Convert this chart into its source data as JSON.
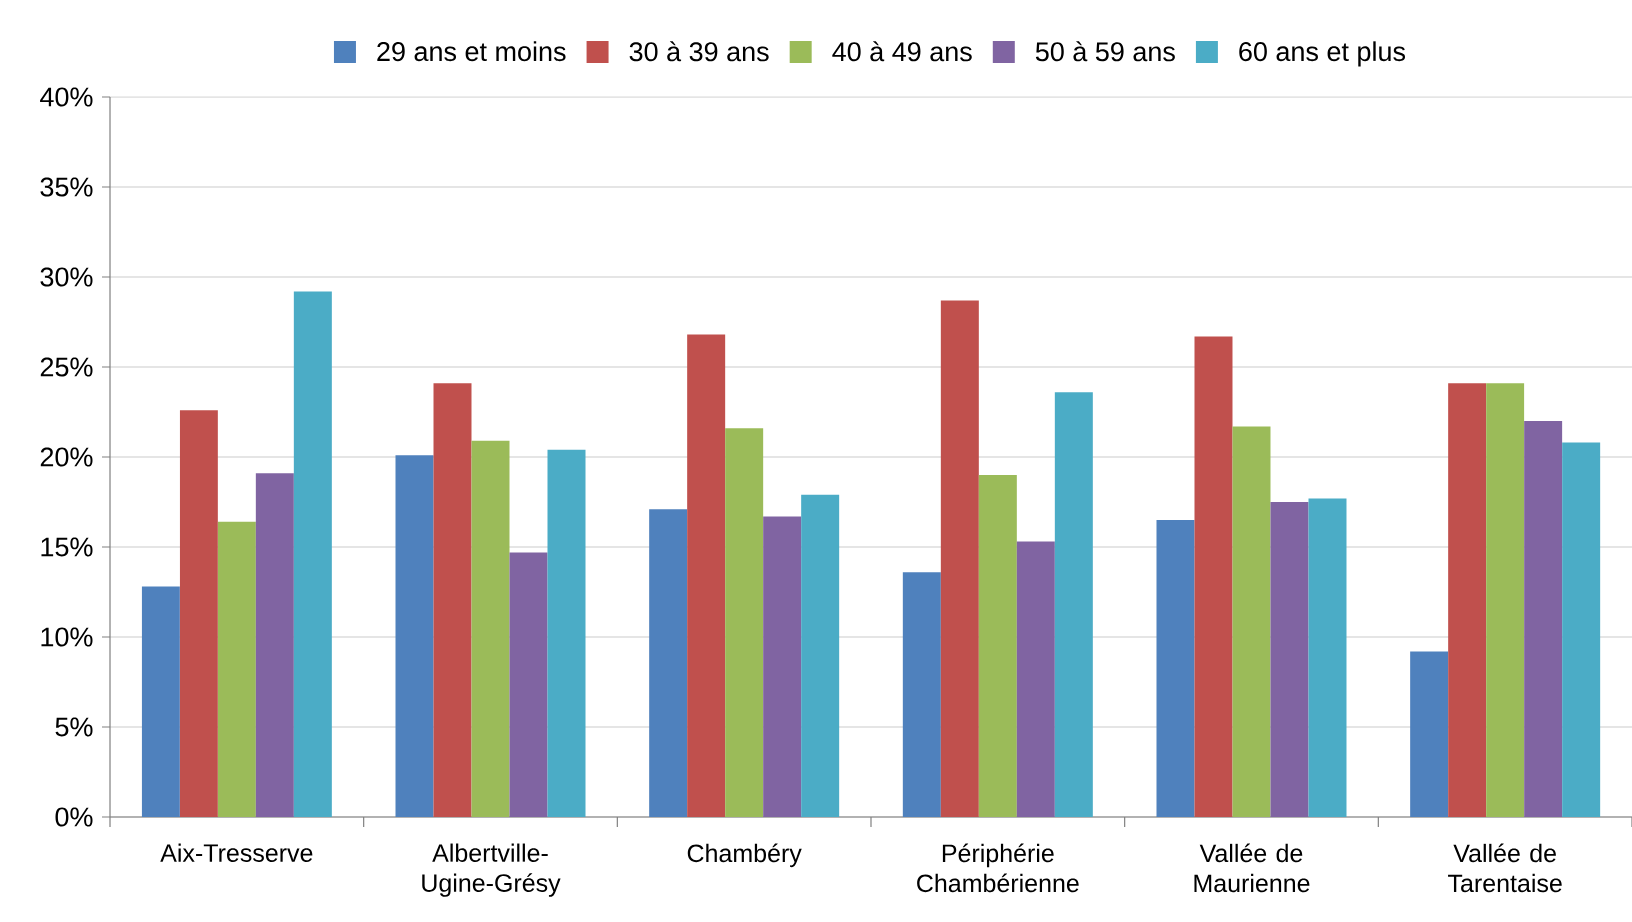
{
  "chart_data": {
    "type": "bar",
    "categories": [
      "Aix-Tresserve",
      "Albertville-Ugine-Grésy",
      "Chambéry",
      "Périphérie Chambérienne",
      "Vallée de Maurienne",
      "Vallée de Tarentaise"
    ],
    "series": [
      {
        "name": "29 ans et moins",
        "color": "#4f81bd",
        "values": [
          12.8,
          20.1,
          17.1,
          13.6,
          16.5,
          9.2
        ]
      },
      {
        "name": "30 à 39 ans",
        "color": "#c0504d",
        "values": [
          22.6,
          24.1,
          26.8,
          28.7,
          26.7,
          24.1
        ]
      },
      {
        "name": "40 à 49 ans",
        "color": "#9bbb59",
        "values": [
          16.4,
          20.9,
          21.6,
          19.0,
          21.7,
          24.1
        ]
      },
      {
        "name": "50 à 59 ans",
        "color": "#8064a2",
        "values": [
          19.1,
          14.7,
          16.7,
          15.3,
          17.5,
          22.0
        ]
      },
      {
        "name": "60 ans et plus",
        "color": "#4bacc6",
        "values": [
          29.2,
          20.4,
          17.9,
          23.6,
          17.7,
          20.8
        ]
      }
    ],
    "ylim": [
      0,
      40
    ],
    "yticks": [
      {
        "value": 0,
        "label": "0%"
      },
      {
        "value": 5,
        "label": "5%"
      },
      {
        "value": 10,
        "label": "10%"
      },
      {
        "value": 15,
        "label": "15%"
      },
      {
        "value": 20,
        "label": "20%"
      },
      {
        "value": 25,
        "label": "25%"
      },
      {
        "value": 30,
        "label": "30%"
      },
      {
        "value": 35,
        "label": "35%"
      },
      {
        "value": 40,
        "label": "40%"
      }
    ],
    "grid": "y",
    "legend": "top"
  }
}
